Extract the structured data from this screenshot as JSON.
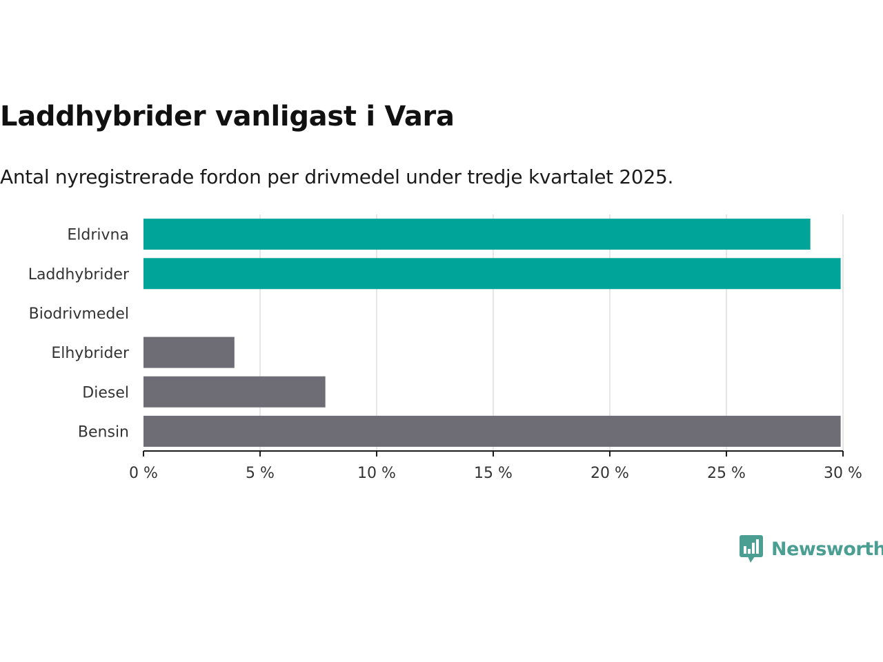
{
  "chart_data": {
    "type": "bar",
    "orientation": "horizontal",
    "title": "Laddhybrider vanligast i Vara",
    "subtitle": "Antal nyregistrerade fordon per drivmedel under tredje kvartalet 2025.",
    "categories": [
      "Eldrivna",
      "Laddhybrider",
      "Biodrivmedel",
      "Elhybrider",
      "Diesel",
      "Bensin"
    ],
    "values": [
      28.6,
      29.9,
      0,
      3.9,
      7.8,
      29.9
    ],
    "colors": [
      "#00a499",
      "#00a499",
      "#00a499",
      "#6e6d75",
      "#6e6d75",
      "#6e6d75"
    ],
    "xlim": [
      0,
      30
    ],
    "xticks": [
      0,
      5,
      10,
      15,
      20,
      25,
      30
    ],
    "xtick_labels": [
      "0 %",
      "5 %",
      "10 %",
      "15 %",
      "20 %",
      "25 %",
      "30 %"
    ],
    "unit": "%",
    "grid": true,
    "xlabel": "",
    "ylabel": ""
  },
  "branding": {
    "logo_text": "Newsworthy",
    "logo_color": "#4a9e92"
  },
  "colors": {
    "accent": "#00a499",
    "neutral": "#6e6d75",
    "grid": "#dddddd",
    "axis": "#1a1a1a"
  }
}
